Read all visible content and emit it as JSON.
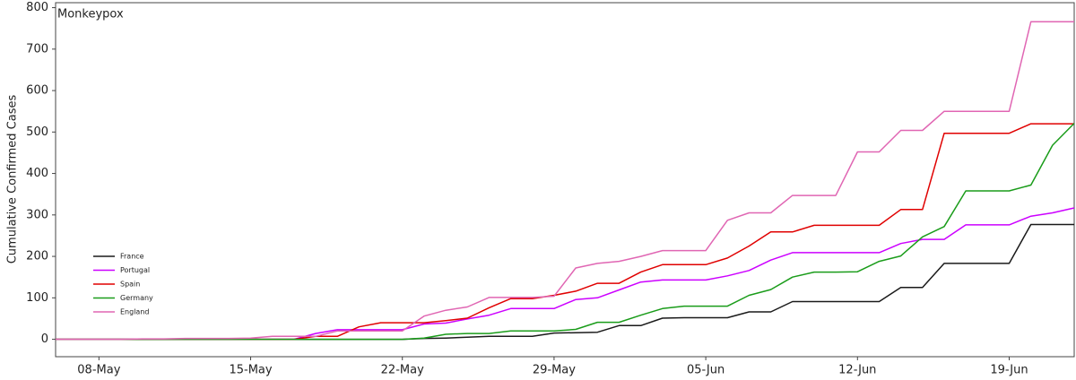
{
  "chart_data": {
    "type": "line",
    "title": "Monkeypox",
    "y_label": "Cumulative Confirmed Cases",
    "x": [
      "06-May",
      "07-May",
      "08-May",
      "09-May",
      "10-May",
      "11-May",
      "12-May",
      "13-May",
      "14-May",
      "15-May",
      "16-May",
      "17-May",
      "18-May",
      "19-May",
      "20-May",
      "21-May",
      "22-May",
      "23-May",
      "24-May",
      "25-May",
      "26-May",
      "27-May",
      "28-May",
      "29-May",
      "30-May",
      "31-May",
      "01-Jun",
      "02-Jun",
      "03-Jun",
      "04-Jun",
      "05-Jun",
      "06-Jun",
      "07-Jun",
      "08-Jun",
      "09-Jun",
      "10-Jun",
      "11-Jun",
      "12-Jun",
      "13-Jun",
      "14-Jun",
      "15-Jun",
      "16-Jun",
      "17-Jun",
      "18-Jun",
      "19-Jun",
      "20-Jun",
      "21-Jun",
      "22-Jun"
    ],
    "xticks": [
      "08-May",
      "15-May",
      "22-May",
      "29-May",
      "05-Jun",
      "12-Jun",
      "19-Jun"
    ],
    "ylim": [
      -42,
      812
    ],
    "yticks": [
      0,
      100,
      200,
      300,
      400,
      500,
      600,
      700,
      800
    ],
    "grid": false,
    "legend": "lower-left",
    "series": [
      {
        "name": "France",
        "color": "#1a1a1a",
        "values": [
          0,
          0,
          0,
          0,
          0,
          0,
          0,
          0,
          0,
          0,
          0,
          0,
          0,
          0,
          0,
          0,
          0,
          2,
          3,
          5,
          7,
          7,
          7,
          15,
          16,
          17,
          33,
          33,
          51,
          52,
          52,
          52,
          66,
          66,
          91,
          91,
          91,
          91,
          91,
          125,
          125,
          183,
          183,
          183,
          183,
          277,
          277,
          277
        ]
      },
      {
        "name": "Portugal",
        "color": "#cc00ff",
        "values": [
          0,
          0,
          0,
          0,
          0,
          0,
          0,
          0,
          0,
          0,
          0,
          0,
          14,
          23,
          23,
          23,
          23,
          37,
          39,
          49,
          58,
          74,
          74,
          74,
          96,
          100,
          119,
          138,
          143,
          143,
          143,
          153,
          166,
          191,
          209,
          209,
          209,
          209,
          209,
          231,
          241,
          241,
          276,
          276,
          276,
          297,
          305,
          317
        ]
      },
      {
        "name": "Spain",
        "color": "#e00000",
        "values": [
          0,
          0,
          0,
          0,
          0,
          0,
          0,
          0,
          0,
          0,
          0,
          0,
          7,
          7,
          30,
          40,
          40,
          40,
          45,
          51,
          76,
          98,
          98,
          106,
          116,
          135,
          135,
          162,
          180,
          180,
          180,
          196,
          225,
          259,
          259,
          275,
          275,
          275,
          275,
          313,
          313,
          497,
          497,
          497,
          497,
          520,
          520,
          520
        ]
      },
      {
        "name": "Germany",
        "color": "#1a9c1a",
        "values": [
          0,
          0,
          0,
          0,
          0,
          0,
          0,
          0,
          0,
          0,
          0,
          0,
          0,
          0,
          0,
          0,
          0,
          3,
          12,
          14,
          14,
          20,
          20,
          20,
          24,
          41,
          41,
          58,
          74,
          80,
          80,
          80,
          106,
          120,
          150,
          162,
          162,
          163,
          188,
          201,
          247,
          272,
          358,
          358,
          358,
          372,
          468,
          521
        ]
      },
      {
        "name": "England",
        "color": "#e066b3",
        "values": [
          0,
          0,
          0,
          0,
          1,
          1,
          2,
          2,
          2,
          3,
          7,
          7,
          7,
          20,
          20,
          20,
          20,
          56,
          70,
          78,
          101,
          101,
          101,
          104,
          172,
          183,
          188,
          200,
          214,
          214,
          214,
          287,
          305,
          305,
          347,
          347,
          347,
          452,
          452,
          504,
          504,
          550,
          550,
          550,
          550,
          766,
          766,
          766
        ]
      }
    ]
  }
}
